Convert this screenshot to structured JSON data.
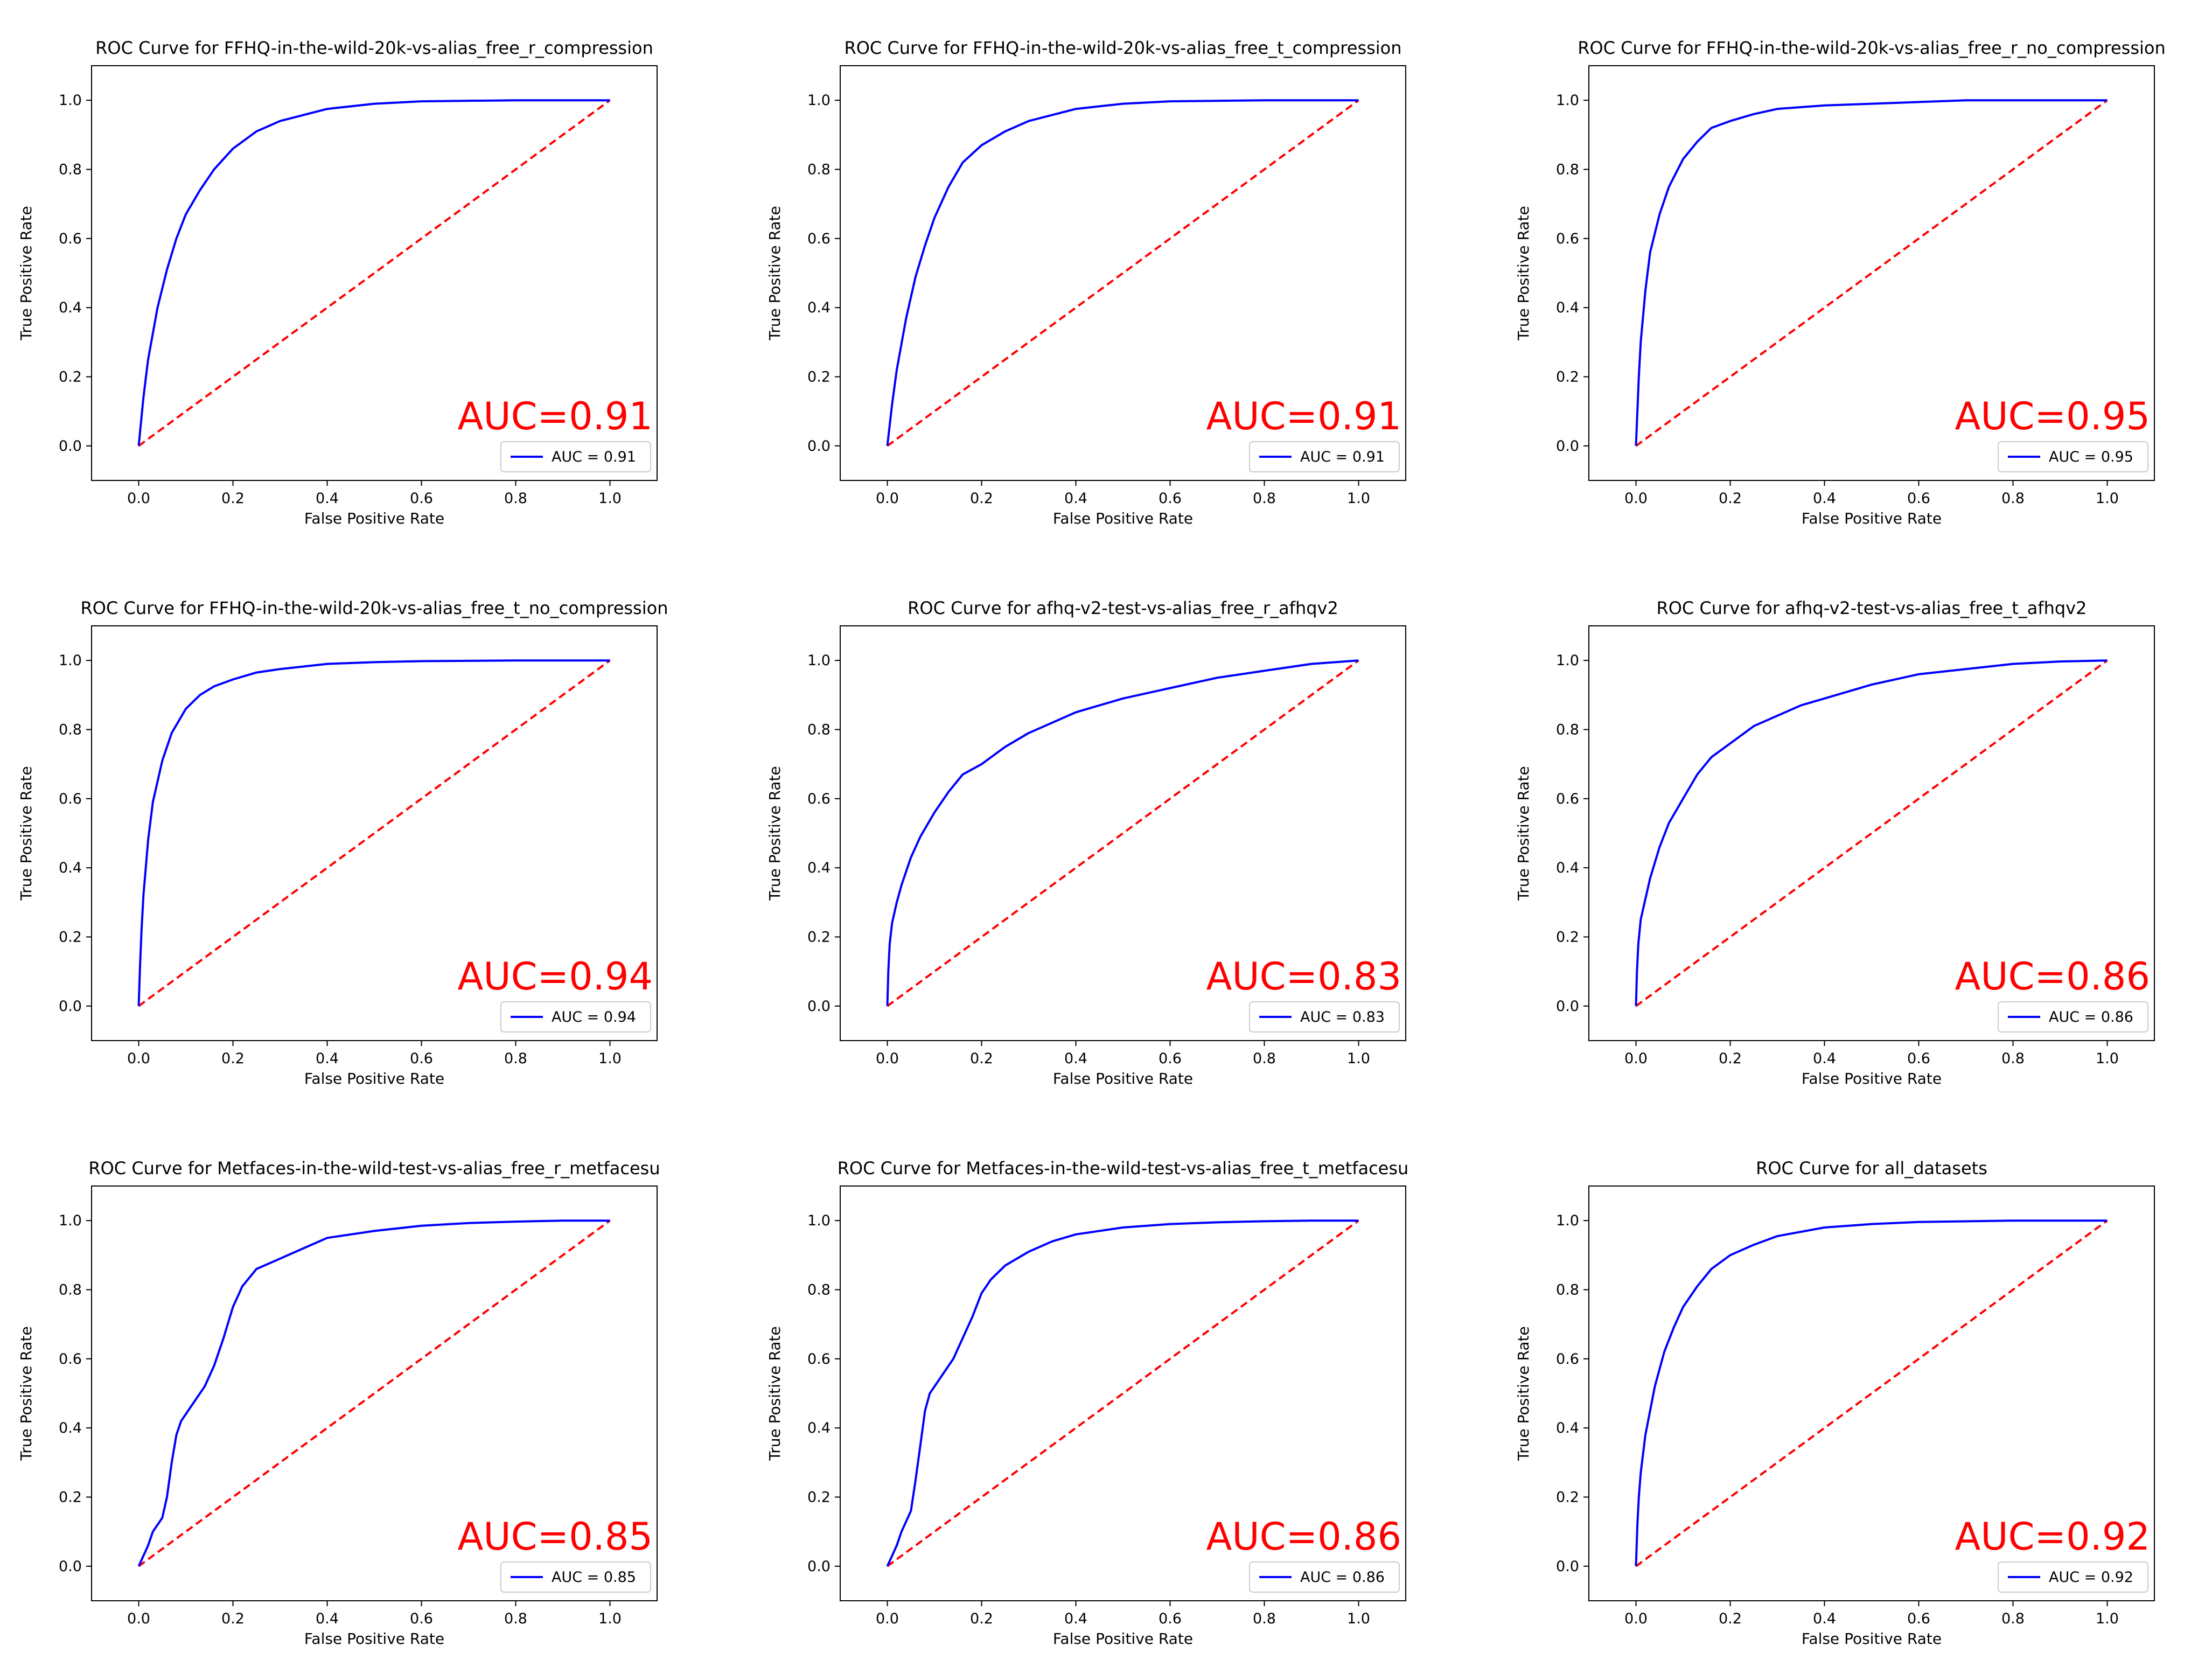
{
  "colors": {
    "roc_curve": "#0000ff",
    "chance_line": "#ff0000",
    "auc_text": "#ff0000",
    "axes": "#000000"
  },
  "chart_data": [
    {
      "type": "line",
      "title": "ROC Curve for FFHQ-in-the-wild-20k-vs-alias_free_r_compression",
      "xlabel": "False Positive Rate",
      "ylabel": "True Positive Rate",
      "xlim": [
        -0.1,
        1.1
      ],
      "ylim": [
        -0.1,
        1.1
      ],
      "xticks": [
        "0.0",
        "0.2",
        "0.4",
        "0.6",
        "0.8",
        "1.0"
      ],
      "yticks": [
        "0.0",
        "0.2",
        "0.4",
        "0.6",
        "0.8",
        "1.0"
      ],
      "auc_label": "AUC=0.91",
      "legend_label": "AUC = 0.91",
      "legend_position": "lower right",
      "series": [
        {
          "x": [
            0,
            0.005,
            0.01,
            0.02,
            0.04,
            0.06,
            0.08,
            0.1,
            0.13,
            0.16,
            0.2,
            0.25,
            0.3,
            0.4,
            0.5,
            0.6,
            0.8,
            1.0
          ],
          "y": [
            0,
            0.07,
            0.14,
            0.25,
            0.4,
            0.51,
            0.6,
            0.67,
            0.74,
            0.8,
            0.86,
            0.91,
            0.94,
            0.975,
            0.99,
            0.997,
            1.0,
            1.0
          ]
        }
      ]
    },
    {
      "type": "line",
      "title": "ROC Curve for FFHQ-in-the-wild-20k-vs-alias_free_t_compression",
      "xlabel": "False Positive Rate",
      "ylabel": "True Positive Rate",
      "xlim": [
        -0.1,
        1.1
      ],
      "ylim": [
        -0.1,
        1.1
      ],
      "xticks": [
        "0.0",
        "0.2",
        "0.4",
        "0.6",
        "0.8",
        "1.0"
      ],
      "yticks": [
        "0.0",
        "0.2",
        "0.4",
        "0.6",
        "0.8",
        "1.0"
      ],
      "auc_label": "AUC=0.91",
      "legend_label": "AUC = 0.91",
      "legend_position": "lower right",
      "series": [
        {
          "x": [
            0,
            0.005,
            0.01,
            0.02,
            0.04,
            0.06,
            0.08,
            0.1,
            0.13,
            0.16,
            0.2,
            0.25,
            0.3,
            0.4,
            0.5,
            0.6,
            0.8,
            1.0
          ],
          "y": [
            0,
            0.06,
            0.12,
            0.22,
            0.37,
            0.49,
            0.58,
            0.66,
            0.75,
            0.82,
            0.87,
            0.91,
            0.94,
            0.975,
            0.99,
            0.997,
            1.0,
            1.0
          ]
        }
      ]
    },
    {
      "type": "line",
      "title": "ROC Curve for FFHQ-in-the-wild-20k-vs-alias_free_r_no_compression",
      "xlabel": "False Positive Rate",
      "ylabel": "True Positive Rate",
      "xlim": [
        -0.1,
        1.1
      ],
      "ylim": [
        -0.1,
        1.1
      ],
      "xticks": [
        "0.0",
        "0.2",
        "0.4",
        "0.6",
        "0.8",
        "1.0"
      ],
      "yticks": [
        "0.0",
        "0.2",
        "0.4",
        "0.6",
        "0.8",
        "1.0"
      ],
      "auc_label": "AUC=0.95",
      "legend_label": "AUC = 0.95",
      "legend_position": "lower right",
      "series": [
        {
          "x": [
            0,
            0.003,
            0.006,
            0.01,
            0.02,
            0.03,
            0.05,
            0.07,
            0.1,
            0.13,
            0.16,
            0.2,
            0.25,
            0.3,
            0.4,
            0.5,
            0.6,
            0.7,
            1.0
          ],
          "y": [
            0,
            0.1,
            0.2,
            0.3,
            0.45,
            0.56,
            0.67,
            0.75,
            0.83,
            0.88,
            0.92,
            0.94,
            0.96,
            0.975,
            0.985,
            0.99,
            0.995,
            1.0,
            1.0
          ]
        }
      ]
    },
    {
      "type": "line",
      "title": "ROC Curve for FFHQ-in-the-wild-20k-vs-alias_free_t_no_compression",
      "xlabel": "False Positive Rate",
      "ylabel": "True Positive Rate",
      "xlim": [
        -0.1,
        1.1
      ],
      "ylim": [
        -0.1,
        1.1
      ],
      "xticks": [
        "0.0",
        "0.2",
        "0.4",
        "0.6",
        "0.8",
        "1.0"
      ],
      "yticks": [
        "0.0",
        "0.2",
        "0.4",
        "0.6",
        "0.8",
        "1.0"
      ],
      "auc_label": "AUC=0.94",
      "legend_label": "AUC = 0.94",
      "legend_position": "lower right",
      "series": [
        {
          "x": [
            0,
            0.003,
            0.006,
            0.01,
            0.02,
            0.03,
            0.05,
            0.07,
            0.1,
            0.13,
            0.16,
            0.2,
            0.25,
            0.3,
            0.4,
            0.5,
            0.6,
            0.8,
            1.0
          ],
          "y": [
            0,
            0.12,
            0.22,
            0.32,
            0.48,
            0.59,
            0.71,
            0.79,
            0.86,
            0.9,
            0.925,
            0.945,
            0.965,
            0.975,
            0.99,
            0.995,
            0.998,
            1.0,
            1.0
          ]
        }
      ]
    },
    {
      "type": "line",
      "title": "ROC Curve for afhq-v2-test-vs-alias_free_r_afhqv2",
      "xlabel": "False Positive Rate",
      "ylabel": "True Positive Rate",
      "xlim": [
        -0.1,
        1.1
      ],
      "ylim": [
        -0.1,
        1.1
      ],
      "xticks": [
        "0.0",
        "0.2",
        "0.4",
        "0.6",
        "0.8",
        "1.0"
      ],
      "yticks": [
        "0.0",
        "0.2",
        "0.4",
        "0.6",
        "0.8",
        "1.0"
      ],
      "auc_label": "AUC=0.83",
      "legend_label": "AUC = 0.83",
      "legend_position": "lower right",
      "series": [
        {
          "x": [
            0,
            0.002,
            0.005,
            0.01,
            0.02,
            0.03,
            0.05,
            0.07,
            0.1,
            0.13,
            0.16,
            0.2,
            0.25,
            0.3,
            0.35,
            0.4,
            0.5,
            0.6,
            0.7,
            0.8,
            0.9,
            1.0
          ],
          "y": [
            0,
            0.1,
            0.18,
            0.24,
            0.3,
            0.35,
            0.43,
            0.49,
            0.56,
            0.62,
            0.67,
            0.7,
            0.75,
            0.79,
            0.82,
            0.85,
            0.89,
            0.92,
            0.95,
            0.97,
            0.99,
            1.0
          ]
        }
      ]
    },
    {
      "type": "line",
      "title": "ROC Curve for afhq-v2-test-vs-alias_free_t_afhqv2",
      "xlabel": "False Positive Rate",
      "ylabel": "True Positive Rate",
      "xlim": [
        -0.1,
        1.1
      ],
      "ylim": [
        -0.1,
        1.1
      ],
      "xticks": [
        "0.0",
        "0.2",
        "0.4",
        "0.6",
        "0.8",
        "1.0"
      ],
      "yticks": [
        "0.0",
        "0.2",
        "0.4",
        "0.6",
        "0.8",
        "1.0"
      ],
      "auc_label": "AUC=0.86",
      "legend_label": "AUC = 0.86",
      "legend_position": "lower right",
      "series": [
        {
          "x": [
            0,
            0.002,
            0.005,
            0.01,
            0.02,
            0.03,
            0.05,
            0.07,
            0.1,
            0.13,
            0.16,
            0.2,
            0.25,
            0.3,
            0.35,
            0.4,
            0.5,
            0.6,
            0.7,
            0.8,
            0.9,
            1.0
          ],
          "y": [
            0,
            0.1,
            0.18,
            0.25,
            0.31,
            0.37,
            0.46,
            0.53,
            0.6,
            0.67,
            0.72,
            0.76,
            0.81,
            0.84,
            0.87,
            0.89,
            0.93,
            0.96,
            0.975,
            0.99,
            0.997,
            1.0
          ]
        }
      ]
    },
    {
      "type": "line",
      "title": "ROC Curve for Metfaces-in-the-wild-test-vs-alias_free_r_metfacesu",
      "xlabel": "False Positive Rate",
      "ylabel": "True Positive Rate",
      "xlim": [
        -0.1,
        1.1
      ],
      "ylim": [
        -0.1,
        1.1
      ],
      "xticks": [
        "0.0",
        "0.2",
        "0.4",
        "0.6",
        "0.8",
        "1.0"
      ],
      "yticks": [
        "0.0",
        "0.2",
        "0.4",
        "0.6",
        "0.8",
        "1.0"
      ],
      "auc_label": "AUC=0.85",
      "legend_label": "AUC = 0.85",
      "legend_position": "lower right",
      "series": [
        {
          "x": [
            0,
            0.01,
            0.02,
            0.03,
            0.05,
            0.06,
            0.07,
            0.08,
            0.09,
            0.1,
            0.12,
            0.14,
            0.16,
            0.18,
            0.2,
            0.22,
            0.25,
            0.3,
            0.35,
            0.4,
            0.5,
            0.6,
            0.7,
            0.8,
            0.9,
            1.0
          ],
          "y": [
            0,
            0.03,
            0.06,
            0.1,
            0.14,
            0.2,
            0.3,
            0.38,
            0.42,
            0.44,
            0.48,
            0.52,
            0.58,
            0.66,
            0.75,
            0.81,
            0.86,
            0.89,
            0.92,
            0.95,
            0.97,
            0.985,
            0.993,
            0.997,
            1.0,
            1.0
          ]
        }
      ]
    },
    {
      "type": "line",
      "title": "ROC Curve for Metfaces-in-the-wild-test-vs-alias_free_t_metfacesu",
      "xlabel": "False Positive Rate",
      "ylabel": "True Positive Rate",
      "xlim": [
        -0.1,
        1.1
      ],
      "ylim": [
        -0.1,
        1.1
      ],
      "xticks": [
        "0.0",
        "0.2",
        "0.4",
        "0.6",
        "0.8",
        "1.0"
      ],
      "yticks": [
        "0.0",
        "0.2",
        "0.4",
        "0.6",
        "0.8",
        "1.0"
      ],
      "auc_label": "AUC=0.86",
      "legend_label": "AUC = 0.86",
      "legend_position": "lower right",
      "series": [
        {
          "x": [
            0,
            0.01,
            0.02,
            0.03,
            0.05,
            0.06,
            0.07,
            0.08,
            0.09,
            0.1,
            0.12,
            0.14,
            0.16,
            0.18,
            0.2,
            0.22,
            0.25,
            0.3,
            0.35,
            0.4,
            0.5,
            0.6,
            0.7,
            0.8,
            0.9,
            1.0
          ],
          "y": [
            0,
            0.03,
            0.06,
            0.1,
            0.16,
            0.25,
            0.35,
            0.45,
            0.5,
            0.52,
            0.56,
            0.6,
            0.66,
            0.72,
            0.79,
            0.83,
            0.87,
            0.91,
            0.94,
            0.96,
            0.98,
            0.99,
            0.995,
            0.998,
            1.0,
            1.0
          ]
        }
      ]
    },
    {
      "type": "line",
      "title": "ROC Curve for all_datasets",
      "xlabel": "False Positive Rate",
      "ylabel": "True Positive Rate",
      "xlim": [
        -0.1,
        1.1
      ],
      "ylim": [
        -0.1,
        1.1
      ],
      "xticks": [
        "0.0",
        "0.2",
        "0.4",
        "0.6",
        "0.8",
        "1.0"
      ],
      "yticks": [
        "0.0",
        "0.2",
        "0.4",
        "0.6",
        "0.8",
        "1.0"
      ],
      "auc_label": "AUC=0.92",
      "legend_label": "AUC = 0.92",
      "legend_position": "lower right",
      "series": [
        {
          "x": [
            0,
            0.003,
            0.006,
            0.01,
            0.02,
            0.04,
            0.06,
            0.08,
            0.1,
            0.13,
            0.16,
            0.2,
            0.25,
            0.3,
            0.4,
            0.5,
            0.6,
            0.8,
            1.0
          ],
          "y": [
            0,
            0.12,
            0.2,
            0.27,
            0.38,
            0.52,
            0.62,
            0.69,
            0.75,
            0.81,
            0.86,
            0.9,
            0.93,
            0.955,
            0.98,
            0.99,
            0.996,
            1.0,
            1.0
          ]
        }
      ]
    }
  ]
}
